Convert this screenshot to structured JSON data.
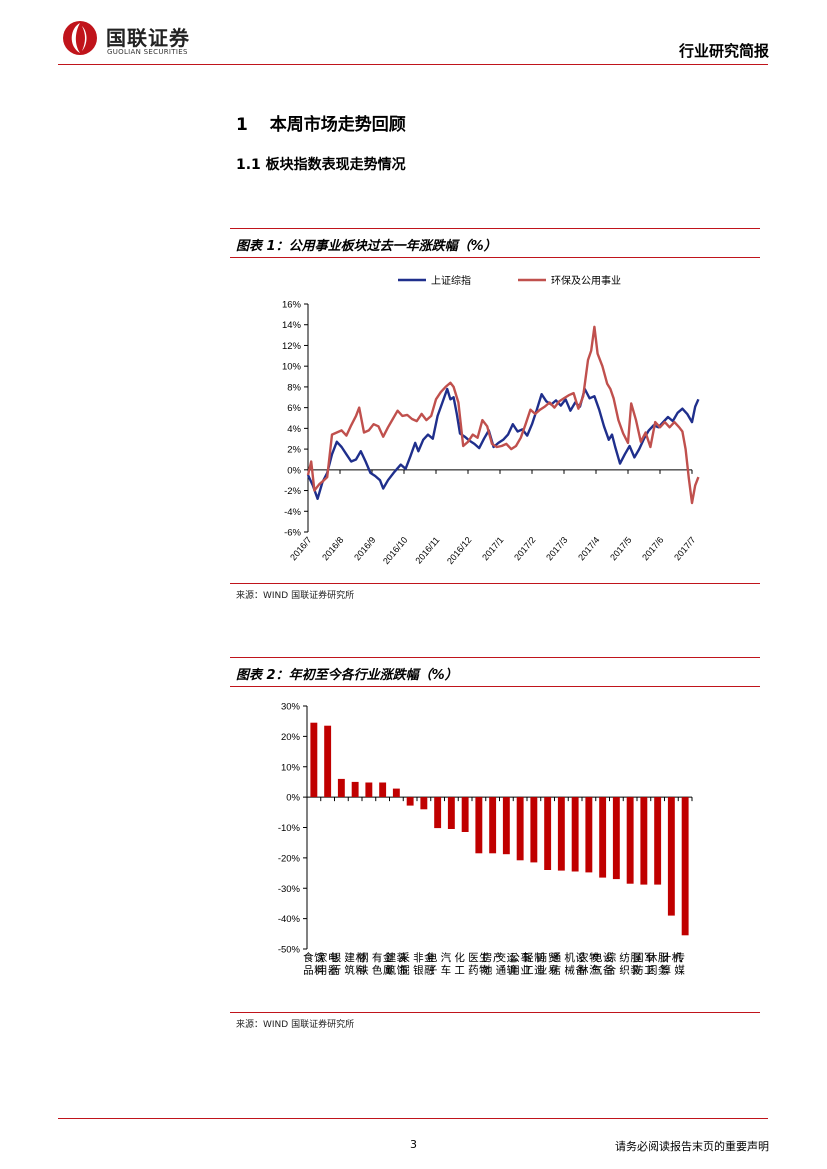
{
  "header": {
    "logo_cn": "国联证券",
    "logo_en": "GUOLIAN SECURITIES",
    "report_type": "行业研究简报",
    "brand_color": "#c0141b"
  },
  "section": {
    "h1_num": "1",
    "h1_text": "本周市场走势回顾",
    "h2_text": "1.1 板块指数表现走势情况"
  },
  "figure1": {
    "title": "图表 1：公用事业板块过去一年涨跌幅（%）",
    "source": "来源：WIND 国联证券研究所"
  },
  "figure2": {
    "title": "图表 2：年初至今各行业涨跌幅（%）",
    "source": "来源：WIND 国联证券研究所"
  },
  "footer": {
    "page": "3",
    "disclaimer": "请务必阅读报告末页的重要声明"
  },
  "chart_data": [
    {
      "type": "line",
      "title": "",
      "xlabel": "",
      "ylabel": "",
      "ylim": [
        -6,
        16
      ],
      "yticks": [
        "-6%",
        "-4%",
        "-2%",
        "0%",
        "2%",
        "4%",
        "6%",
        "8%",
        "10%",
        "12%",
        "14%",
        "16%"
      ],
      "xticks": [
        "2016/7",
        "2016/8",
        "2016/9",
        "2016/10",
        "2016/11",
        "2016/12",
        "2017/1",
        "2017/2",
        "2017/3",
        "2017/4",
        "2017/5",
        "2017/6",
        "2017/7"
      ],
      "legend_position": "top",
      "grid": false,
      "series": [
        {
          "name": "上证综指",
          "color": "#1f2f8c",
          "points": [
            [
              0,
              -0.5
            ],
            [
              0.15,
              -1.5
            ],
            [
              0.3,
              -2.8
            ],
            [
              0.45,
              -1.2
            ],
            [
              0.6,
              -0.3
            ],
            [
              0.75,
              1.5
            ],
            [
              0.9,
              2.7
            ],
            [
              1.05,
              2.2
            ],
            [
              1.2,
              1.5
            ],
            [
              1.35,
              0.8
            ],
            [
              1.5,
              1.0
            ],
            [
              1.65,
              1.8
            ],
            [
              1.8,
              0.8
            ],
            [
              1.95,
              -0.3
            ],
            [
              2.1,
              -0.6
            ],
            [
              2.25,
              -1.0
            ],
            [
              2.35,
              -1.8
            ],
            [
              2.5,
              -1.0
            ],
            [
              2.7,
              -0.2
            ],
            [
              2.9,
              0.5
            ],
            [
              3.05,
              0.1
            ],
            [
              3.2,
              1.3
            ],
            [
              3.35,
              2.6
            ],
            [
              3.45,
              1.8
            ],
            [
              3.6,
              2.9
            ],
            [
              3.75,
              3.4
            ],
            [
              3.9,
              3.0
            ],
            [
              4.05,
              5.2
            ],
            [
              4.2,
              6.5
            ],
            [
              4.35,
              7.8
            ],
            [
              4.45,
              6.8
            ],
            [
              4.55,
              7.0
            ],
            [
              4.65,
              5.4
            ],
            [
              4.75,
              3.5
            ],
            [
              4.9,
              3.2
            ],
            [
              5.05,
              2.8
            ],
            [
              5.2,
              2.5
            ],
            [
              5.35,
              2.1
            ],
            [
              5.5,
              3.0
            ],
            [
              5.65,
              3.8
            ],
            [
              5.8,
              2.2
            ],
            [
              5.95,
              2.6
            ],
            [
              6.1,
              2.9
            ],
            [
              6.25,
              3.4
            ],
            [
              6.4,
              4.4
            ],
            [
              6.55,
              3.7
            ],
            [
              6.7,
              3.9
            ],
            [
              6.85,
              3.3
            ],
            [
              7.0,
              4.4
            ],
            [
              7.15,
              5.8
            ],
            [
              7.3,
              7.3
            ],
            [
              7.45,
              6.6
            ],
            [
              7.6,
              6.3
            ],
            [
              7.75,
              6.7
            ],
            [
              7.9,
              6.2
            ],
            [
              8.05,
              6.8
            ],
            [
              8.2,
              5.7
            ],
            [
              8.35,
              6.5
            ],
            [
              8.5,
              6.1
            ],
            [
              8.65,
              7.8
            ],
            [
              8.8,
              6.9
            ],
            [
              8.95,
              7.1
            ],
            [
              9.1,
              5.8
            ],
            [
              9.25,
              4.2
            ],
            [
              9.4,
              2.9
            ],
            [
              9.5,
              3.4
            ],
            [
              9.6,
              2.2
            ],
            [
              9.75,
              0.6
            ],
            [
              9.9,
              1.5
            ],
            [
              10.05,
              2.3
            ],
            [
              10.2,
              1.2
            ],
            [
              10.35,
              2.0
            ],
            [
              10.5,
              3.0
            ],
            [
              10.65,
              3.8
            ],
            [
              10.8,
              4.3
            ],
            [
              10.95,
              4.1
            ],
            [
              11.1,
              4.6
            ],
            [
              11.25,
              5.1
            ],
            [
              11.4,
              4.7
            ],
            [
              11.55,
              5.5
            ],
            [
              11.7,
              5.9
            ],
            [
              11.85,
              5.4
            ],
            [
              12.0,
              4.6
            ],
            [
              12.1,
              6.1
            ],
            [
              12.2,
              6.8
            ]
          ]
        },
        {
          "name": "环保及公用事业",
          "color": "#c0504d",
          "points": [
            [
              0,
              -0.5
            ],
            [
              0.1,
              0.8
            ],
            [
              0.2,
              -2.0
            ],
            [
              0.35,
              -1.4
            ],
            [
              0.5,
              -1.0
            ],
            [
              0.6,
              -0.7
            ],
            [
              0.75,
              3.4
            ],
            [
              0.9,
              3.6
            ],
            [
              1.05,
              3.8
            ],
            [
              1.2,
              3.3
            ],
            [
              1.35,
              4.3
            ],
            [
              1.5,
              5.2
            ],
            [
              1.6,
              6.0
            ],
            [
              1.75,
              3.6
            ],
            [
              1.9,
              3.8
            ],
            [
              2.05,
              4.4
            ],
            [
              2.2,
              4.2
            ],
            [
              2.35,
              3.2
            ],
            [
              2.5,
              4.1
            ],
            [
              2.65,
              4.9
            ],
            [
              2.8,
              5.7
            ],
            [
              2.95,
              5.2
            ],
            [
              3.1,
              5.3
            ],
            [
              3.25,
              4.9
            ],
            [
              3.4,
              4.7
            ],
            [
              3.55,
              5.4
            ],
            [
              3.7,
              4.8
            ],
            [
              3.85,
              5.2
            ],
            [
              4.0,
              6.8
            ],
            [
              4.15,
              7.5
            ],
            [
              4.3,
              8.0
            ],
            [
              4.45,
              8.4
            ],
            [
              4.55,
              8.0
            ],
            [
              4.7,
              6.5
            ],
            [
              4.85,
              2.3
            ],
            [
              5.0,
              2.7
            ],
            [
              5.15,
              3.4
            ],
            [
              5.3,
              3.1
            ],
            [
              5.45,
              4.8
            ],
            [
              5.6,
              4.2
            ],
            [
              5.75,
              2.5
            ],
            [
              5.9,
              2.2
            ],
            [
              6.05,
              2.3
            ],
            [
              6.2,
              2.5
            ],
            [
              6.35,
              2.0
            ],
            [
              6.5,
              2.3
            ],
            [
              6.65,
              3.1
            ],
            [
              6.8,
              4.4
            ],
            [
              6.95,
              5.8
            ],
            [
              7.1,
              5.4
            ],
            [
              7.25,
              5.8
            ],
            [
              7.4,
              6.1
            ],
            [
              7.55,
              6.5
            ],
            [
              7.7,
              6.0
            ],
            [
              7.85,
              6.6
            ],
            [
              8.0,
              6.9
            ],
            [
              8.15,
              7.2
            ],
            [
              8.3,
              7.4
            ],
            [
              8.45,
              5.9
            ],
            [
              8.6,
              7.1
            ],
            [
              8.75,
              10.6
            ],
            [
              8.85,
              11.5
            ],
            [
              8.95,
              13.8
            ],
            [
              9.05,
              11.2
            ],
            [
              9.2,
              10.0
            ],
            [
              9.35,
              8.3
            ],
            [
              9.45,
              7.8
            ],
            [
              9.55,
              6.9
            ],
            [
              9.7,
              4.8
            ],
            [
              9.85,
              3.5
            ],
            [
              10.0,
              2.6
            ],
            [
              10.1,
              6.4
            ],
            [
              10.25,
              4.8
            ],
            [
              10.4,
              2.7
            ],
            [
              10.55,
              3.6
            ],
            [
              10.7,
              2.2
            ],
            [
              10.85,
              4.6
            ],
            [
              11.0,
              4.1
            ],
            [
              11.15,
              4.6
            ],
            [
              11.3,
              4.1
            ],
            [
              11.45,
              4.6
            ],
            [
              11.6,
              4.1
            ],
            [
              11.7,
              3.7
            ],
            [
              11.8,
              2.0
            ],
            [
              11.9,
              -0.8
            ],
            [
              12.0,
              -3.2
            ],
            [
              12.1,
              -1.5
            ],
            [
              12.2,
              -0.7
            ]
          ]
        }
      ]
    },
    {
      "type": "bar",
      "title": "",
      "xlabel": "",
      "ylabel": "",
      "ylim": [
        -50,
        30
      ],
      "yticks": [
        "-50%",
        "-40%",
        "-30%",
        "-20%",
        "-10%",
        "0%",
        "10%",
        "20%",
        "30%"
      ],
      "categories": [
        "食品饮料",
        "家用电器",
        "银行",
        "建筑材料",
        "钢铁",
        "有色金属",
        "建筑装饰",
        "采掘",
        "非银金融",
        "电子",
        "汽车",
        "化工",
        "医药生物",
        "房地产",
        "交通运输",
        "公用事业",
        "轻工制造",
        "商业贸易",
        "通信",
        "机械设备",
        "农林牧渔",
        "电气设备",
        "综合",
        "纺织服装",
        "国防军工",
        "休闲服务",
        "计算机",
        "传媒"
      ],
      "values": [
        24.5,
        23.5,
        6.0,
        5.0,
        4.8,
        4.8,
        2.8,
        -2.8,
        -4.0,
        -10.2,
        -10.5,
        -11.5,
        -18.5,
        -18.5,
        -18.8,
        -20.8,
        -21.5,
        -24.0,
        -24.2,
        -24.5,
        -24.8,
        -26.5,
        -27.0,
        -28.5,
        -28.8,
        -28.8,
        -39.0,
        -45.5
      ],
      "color": "#c00000"
    }
  ]
}
